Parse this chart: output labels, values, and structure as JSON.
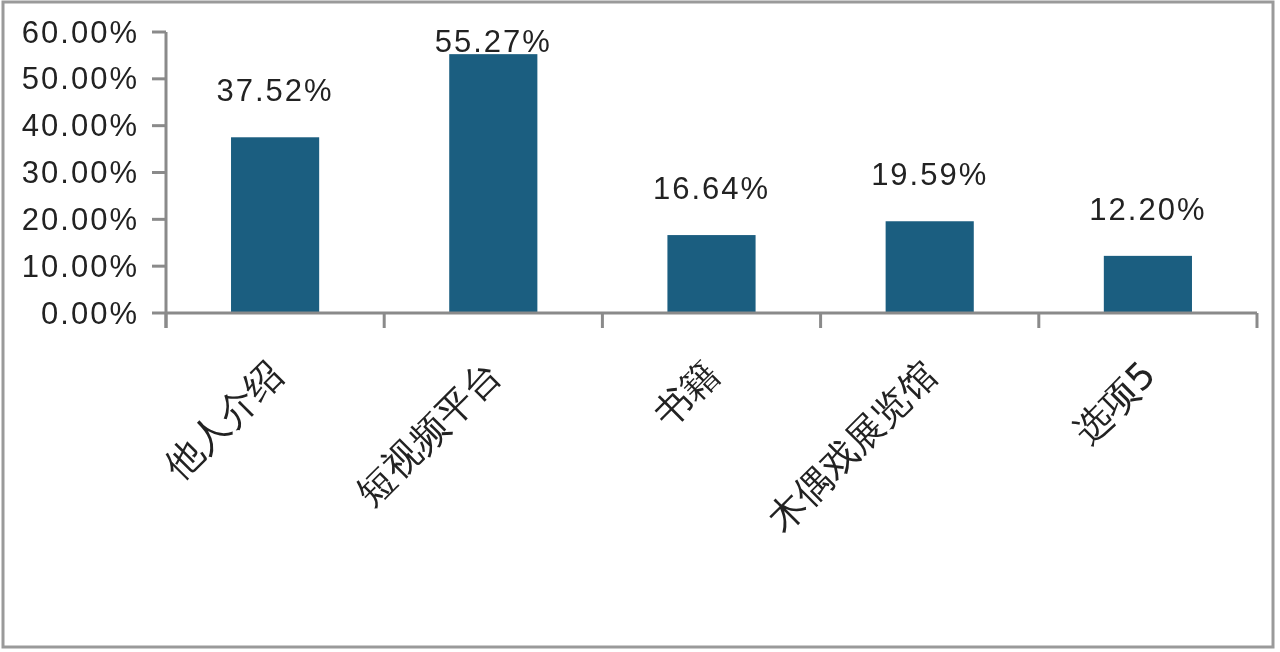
{
  "chart_data": {
    "type": "bar",
    "categories": [
      "他人介绍",
      "短视频平台",
      "书籍",
      "木偶戏展览馆",
      "选项5"
    ],
    "values": [
      37.52,
      55.27,
      16.64,
      19.59,
      12.2
    ],
    "value_labels": [
      "37.52%",
      "55.27%",
      "16.64%",
      "19.59%",
      "12.20%"
    ],
    "color": "#1b5e80",
    "ylim": [
      0,
      60
    ],
    "yticks": [
      {
        "value": 0,
        "label": "0.00%"
      },
      {
        "value": 10,
        "label": "10.00%"
      },
      {
        "value": 20,
        "label": "20.00%"
      },
      {
        "value": 30,
        "label": "30.00%"
      },
      {
        "value": 40,
        "label": "40.00%"
      },
      {
        "value": 50,
        "label": "50.00%"
      },
      {
        "value": 60,
        "label": "60.00%"
      }
    ]
  }
}
